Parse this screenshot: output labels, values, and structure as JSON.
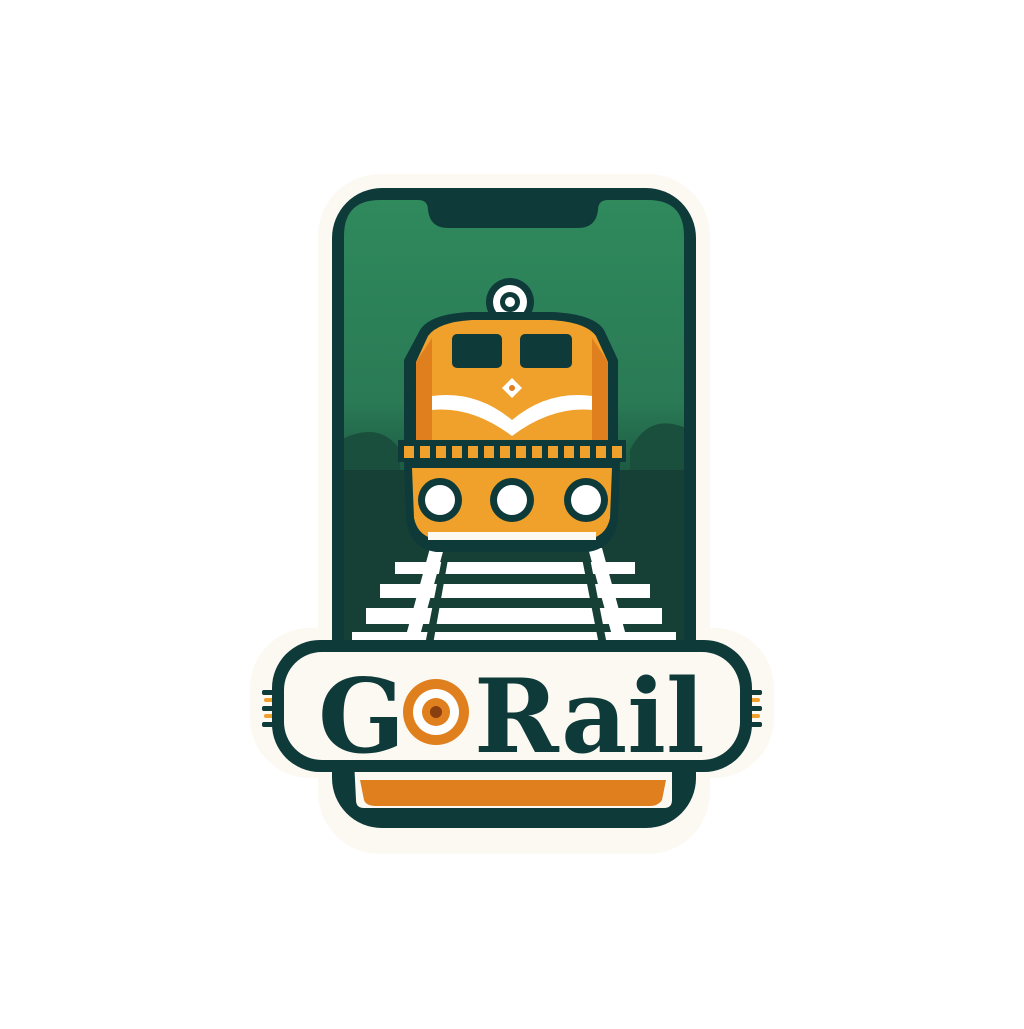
{
  "logo": {
    "brand_prefix": "G",
    "brand_suffix": "Rail",
    "brand_full": "GoRail",
    "icon": "train-locomotive-icon",
    "device": "smartphone-icon"
  },
  "colors": {
    "green_light": "#2f8a5c",
    "green_dark": "#1d5a43",
    "navy": "#0f3a3a",
    "orange": "#f0a12b",
    "orange_dark": "#e07f1e",
    "cream": "#fbf9f1",
    "white": "#ffffff"
  }
}
